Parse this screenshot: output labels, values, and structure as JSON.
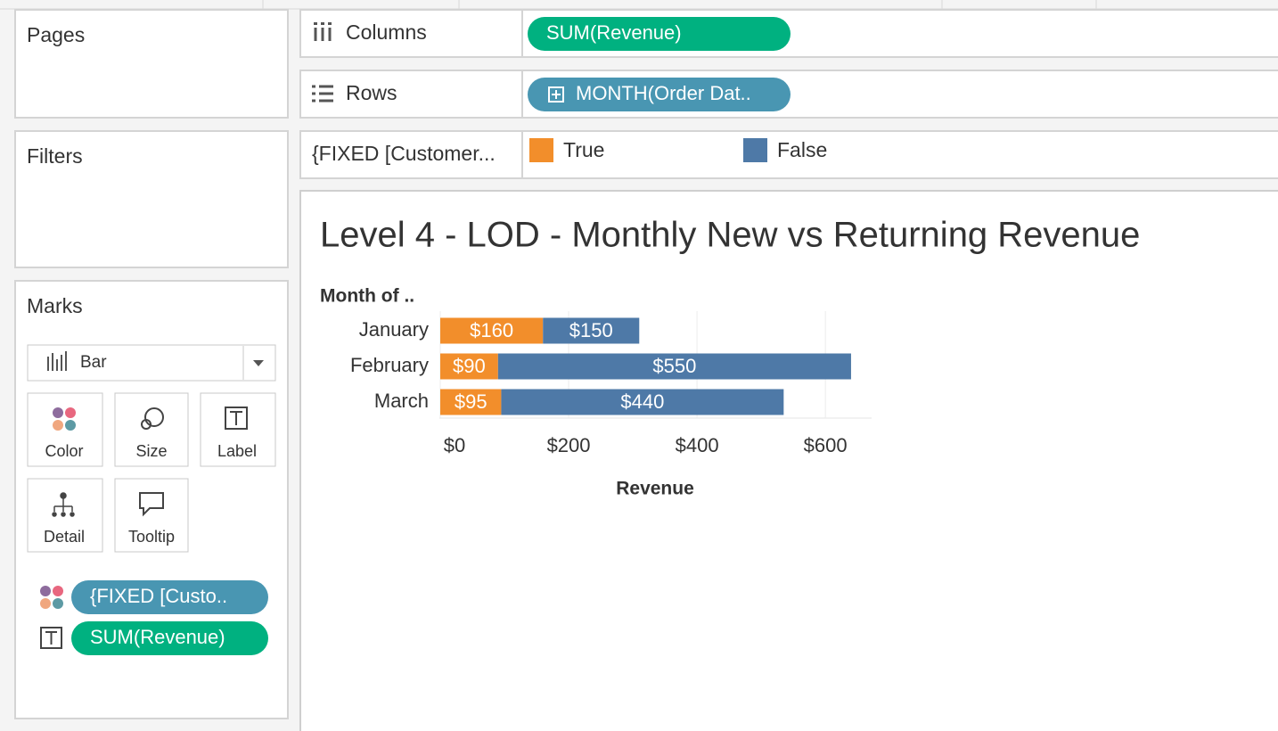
{
  "sidebar": {
    "pages": "Pages",
    "filters": "Filters",
    "marks": "Marks",
    "mark_type": "Bar",
    "cards": [
      "Color",
      "Size",
      "Label",
      "Detail",
      "Tooltip"
    ],
    "pills": [
      "{FIXED [Custo..",
      "SUM(Revenue)"
    ]
  },
  "shelves": {
    "columns": {
      "label": "Columns",
      "pill": "SUM(Revenue)"
    },
    "rows": {
      "label": "Rows",
      "pill": "MONTH(Order Dat.."
    },
    "legend": {
      "label": "{FIXED [Customer..."
    }
  },
  "chart_data": {
    "type": "bar",
    "orientation": "horizontal",
    "stacked": true,
    "title": "Level 4 - LOD - Monthly New vs Returning Revenue",
    "y_label": "Month of ..",
    "x_label": "Revenue",
    "categories": [
      "January",
      "February",
      "March"
    ],
    "series": [
      {
        "name": "True",
        "color": "#f28e2b",
        "values": [
          160,
          90,
          95
        ],
        "value_labels": [
          "$160",
          "$90",
          "$95"
        ]
      },
      {
        "name": "False",
        "color": "#4e79a7",
        "values": [
          150,
          550,
          440
        ],
        "value_labels": [
          "$150",
          "$550",
          "$440"
        ]
      }
    ],
    "xlim": [
      0,
      672
    ],
    "xticks": [
      {
        "value": 0,
        "label": "$0"
      },
      {
        "value": 200,
        "label": "$200"
      },
      {
        "value": 400,
        "label": "$400"
      },
      {
        "value": 600,
        "label": "$600"
      }
    ],
    "grid": true
  }
}
